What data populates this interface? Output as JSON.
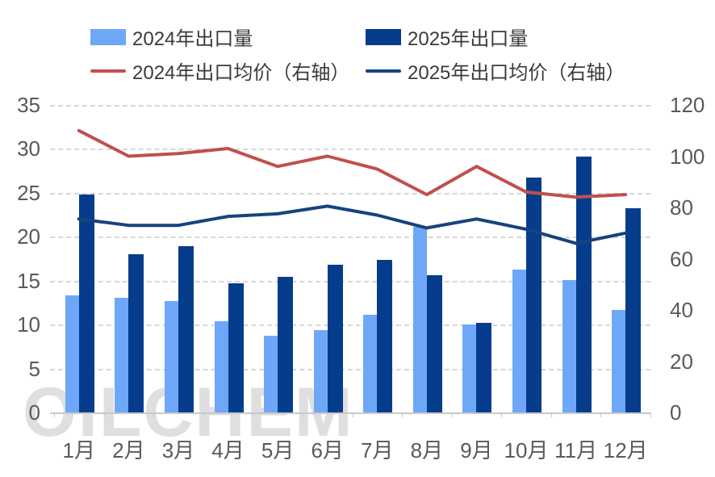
{
  "watermark": "OILCHEM",
  "colors": {
    "bar_2024": "#6FA7F8",
    "bar_2025": "#053D8C",
    "line_2024": "#C0504D",
    "line_2025": "#17437C",
    "axis_text": "#595959",
    "legend_text": "#3B3B3B",
    "gridline": "#D6D6D6",
    "baseline": "#C9C9C9"
  },
  "chart_data": {
    "type": "combo",
    "categories": [
      "1月",
      "2月",
      "3月",
      "4月",
      "5月",
      "6月",
      "7月",
      "8月",
      "9月",
      "10月",
      "11月",
      "12月"
    ],
    "series": [
      {
        "name": "2024年出口量",
        "type": "bar",
        "axis": "left",
        "color": "#6FA7F8",
        "values": [
          13.3,
          13.0,
          12.7,
          10.4,
          8.7,
          9.4,
          11.1,
          21.1,
          10.0,
          16.3,
          15.1,
          11.7
        ]
      },
      {
        "name": "2025年出口量",
        "type": "bar",
        "axis": "left",
        "color": "#053D8C",
        "values": [
          24.8,
          18.0,
          18.9,
          14.7,
          15.4,
          16.8,
          17.4,
          15.6,
          10.2,
          26.7,
          29.1,
          23.2
        ]
      },
      {
        "name": "2024年出口均价（右轴）",
        "type": "line",
        "axis": "right",
        "color": "#C0504D",
        "values": [
          110,
          100,
          101,
          103,
          96,
          100,
          95,
          85,
          96,
          86,
          84,
          85
        ]
      },
      {
        "name": "2025年出口均价（右轴）",
        "type": "line",
        "axis": "right",
        "color": "#17437C",
        "values": [
          75.5,
          73,
          73,
          76.5,
          77.5,
          80.5,
          77,
          72,
          75.5,
          71.5,
          66,
          70
        ]
      }
    ],
    "left_axis": {
      "min": 0,
      "max": 35,
      "step": 5,
      "ticks": [
        35,
        30,
        25,
        20,
        15,
        10,
        5,
        0
      ]
    },
    "right_axis": {
      "min": 0,
      "max": 120,
      "step": 20,
      "ticks": [
        120,
        100,
        80,
        60,
        40,
        20,
        0
      ]
    },
    "grid": true,
    "legend_position": "top",
    "title": ""
  }
}
